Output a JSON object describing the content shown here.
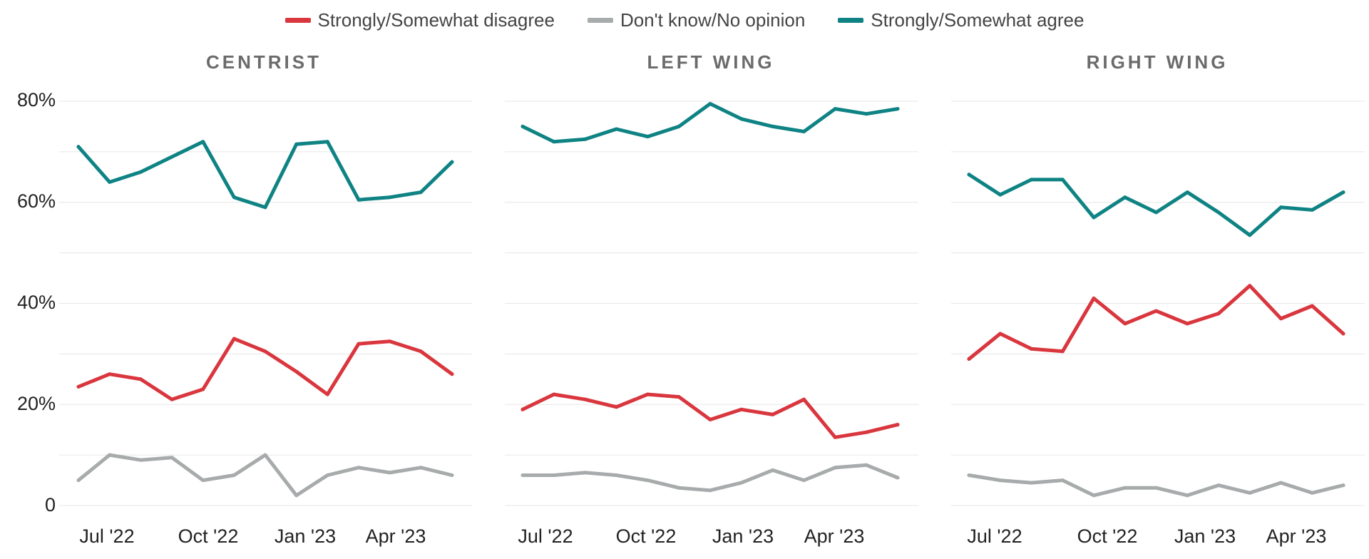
{
  "legend": {
    "items": [
      {
        "label": "Strongly/Somewhat disagree",
        "color": "#d9363e"
      },
      {
        "label": "Don't know/No opinion",
        "color": "#a7abab"
      },
      {
        "label": "Strongly/Somewhat agree",
        "color": "#0f8384"
      }
    ]
  },
  "y_axis": {
    "ticks": [
      "0",
      "20%",
      "40%",
      "60%",
      "80%"
    ]
  },
  "chart_data": [
    {
      "type": "line",
      "title": "CENTRIST",
      "x_tick_labels": [
        "Jul '22",
        "Oct '22",
        "Jan '23",
        "Apr '23"
      ],
      "ylim": [
        0,
        80
      ],
      "grid": true,
      "series": [
        {
          "name": "Strongly/Somewhat disagree",
          "color": "#d9363e",
          "values": [
            23.5,
            26,
            25,
            21,
            23,
            33,
            30.5,
            26.5,
            22,
            32,
            32.5,
            30.5,
            26
          ]
        },
        {
          "name": "Don't know/No opinion",
          "color": "#a7abab",
          "values": [
            5,
            10,
            9,
            9.5,
            5,
            6,
            10,
            2,
            6,
            7.5,
            6.5,
            7.5,
            6
          ]
        },
        {
          "name": "Strongly/Somewhat agree",
          "color": "#0f8384",
          "values": [
            71,
            64,
            66,
            69,
            72,
            61,
            59,
            71.5,
            72,
            60.5,
            61,
            62,
            68
          ]
        }
      ]
    },
    {
      "type": "line",
      "title": "LEFT WING",
      "x_tick_labels": [
        "Jul '22",
        "Oct '22",
        "Jan '23",
        "Apr '23"
      ],
      "ylim": [
        0,
        80
      ],
      "grid": true,
      "series": [
        {
          "name": "Strongly/Somewhat disagree",
          "color": "#d9363e",
          "values": [
            19,
            22,
            21,
            19.5,
            22,
            21.5,
            17,
            19,
            18,
            21,
            13.5,
            14.5,
            16
          ]
        },
        {
          "name": "Don't know/No opinion",
          "color": "#a7abab",
          "values": [
            6,
            6,
            6.5,
            6,
            5,
            3.5,
            3,
            4.5,
            7,
            5,
            7.5,
            8,
            5.5
          ]
        },
        {
          "name": "Strongly/Somewhat agree",
          "color": "#0f8384",
          "values": [
            75,
            72,
            72.5,
            74.5,
            73,
            75,
            79.5,
            76.5,
            75,
            74,
            78.5,
            77.5,
            78.5
          ]
        }
      ]
    },
    {
      "type": "line",
      "title": "RIGHT WING",
      "x_tick_labels": [
        "Jul '22",
        "Oct '22",
        "Jan '23",
        "Apr '23"
      ],
      "ylim": [
        0,
        80
      ],
      "grid": true,
      "series": [
        {
          "name": "Strongly/Somewhat disagree",
          "color": "#d9363e",
          "values": [
            29,
            34,
            31,
            30.5,
            41,
            36,
            38.5,
            36,
            38,
            43.5,
            37,
            39.5,
            34
          ]
        },
        {
          "name": "Don't know/No opinion",
          "color": "#a7abab",
          "values": [
            6,
            5,
            4.5,
            5,
            2,
            3.5,
            3.5,
            2,
            4,
            2.5,
            4.5,
            2.5,
            4
          ]
        },
        {
          "name": "Strongly/Somewhat agree",
          "color": "#0f8384",
          "values": [
            65.5,
            61.5,
            64.5,
            64.5,
            57,
            61,
            58,
            62,
            58,
            53.5,
            59,
            58.5,
            62
          ]
        }
      ]
    }
  ]
}
